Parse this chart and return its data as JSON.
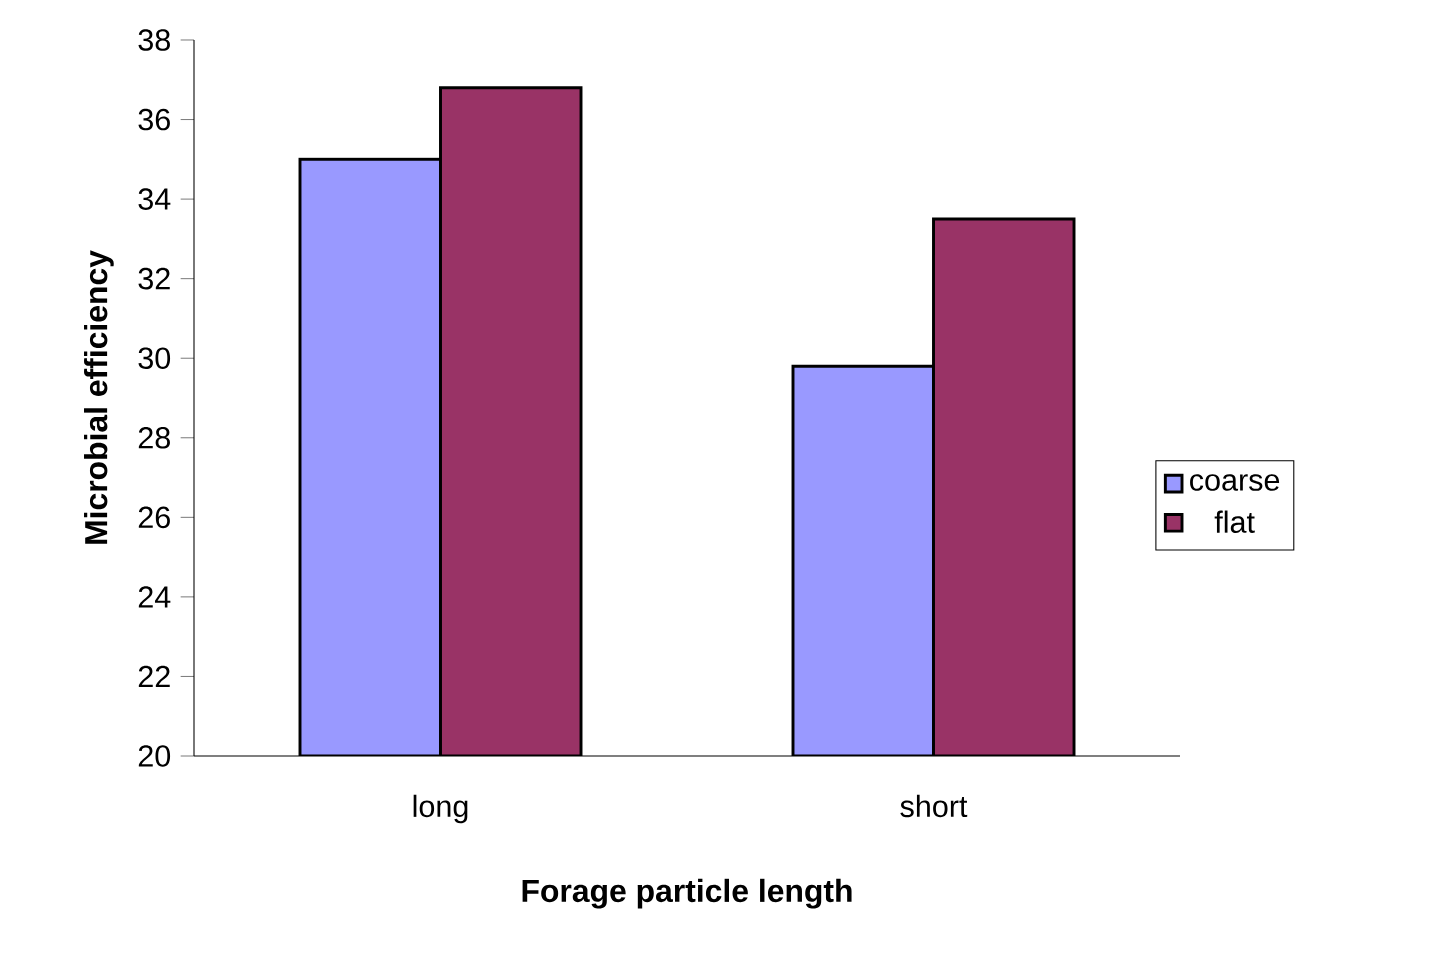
{
  "chart_data": {
    "type": "bar",
    "xlabel": "Forage particle length",
    "ylabel": "Microbial efficiency",
    "categories": [
      "long",
      "short"
    ],
    "series": [
      {
        "name": "coarse",
        "color": "#9999ff",
        "values": [
          35.0,
          29.8
        ]
      },
      {
        "name": "flat",
        "color": "#993366",
        "values": [
          36.8,
          33.5
        ]
      }
    ],
    "ylim": [
      20,
      38
    ],
    "yticks": [
      20,
      22,
      24,
      26,
      28,
      30,
      32,
      34,
      36,
      38
    ],
    "grid": false,
    "legend": "right"
  }
}
